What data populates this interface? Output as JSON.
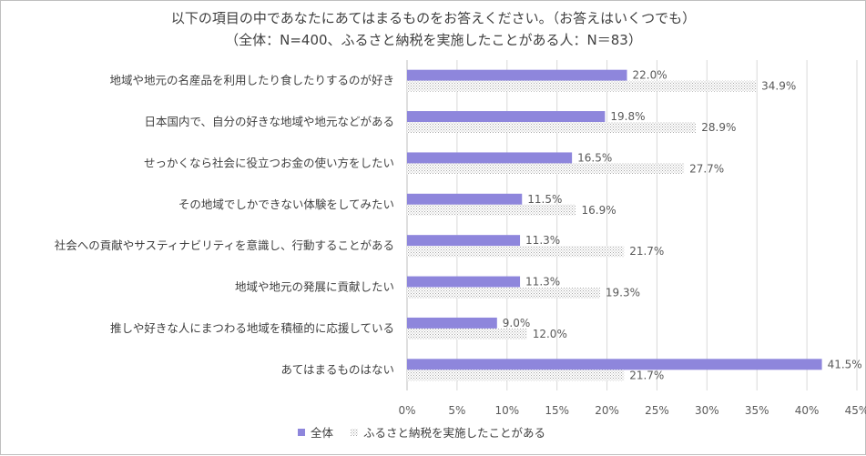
{
  "chart_data": {
    "type": "bar",
    "orientation": "horizontal",
    "title": "以下の項目の中であなたにあてはまるものをお答えください。（お答えはいくつでも）",
    "subtitle": "（全体：N=400、ふるさと納税を実施したことがある人：N＝83）",
    "categories": [
      "地域や地元の名産品を利用したり食したりするのが好き",
      "日本国内で、自分の好きな地域や地元などがある",
      "せっかくなら社会に役立つお金の使い方をしたい",
      "その地域でしかできない体験をしてみたい",
      "社会への貢献やサスティナビリティを意識し、行動することがある",
      "地域や地元の発展に貢献したい",
      "推しや好きな人にまつわる地域を積極的に応援している",
      "あてはまるものはない"
    ],
    "series": [
      {
        "name": "全体",
        "values": [
          22.0,
          19.8,
          16.5,
          11.5,
          11.3,
          11.3,
          9.0,
          41.5
        ],
        "labels": [
          "22.0%",
          "19.8%",
          "16.5%",
          "11.5%",
          "11.3%",
          "11.3%",
          "9.0%",
          "41.5%"
        ],
        "color": "#8e86dc"
      },
      {
        "name": "ふるさと納税を実施したことがある",
        "values": [
          34.9,
          28.9,
          27.7,
          16.9,
          21.7,
          19.3,
          12.0,
          21.7
        ],
        "labels": [
          "34.9%",
          "28.9%",
          "27.7%",
          "16.9%",
          "21.7%",
          "19.3%",
          "12.0%",
          "21.7%"
        ],
        "color": "#bfbfbf",
        "pattern": "dotted"
      }
    ],
    "xlim": [
      0,
      45
    ],
    "xticks": [
      "0%",
      "5%",
      "10%",
      "15%",
      "20%",
      "25%",
      "30%",
      "35%",
      "40%",
      "45%"
    ],
    "grid": true,
    "legend": "bottom"
  }
}
